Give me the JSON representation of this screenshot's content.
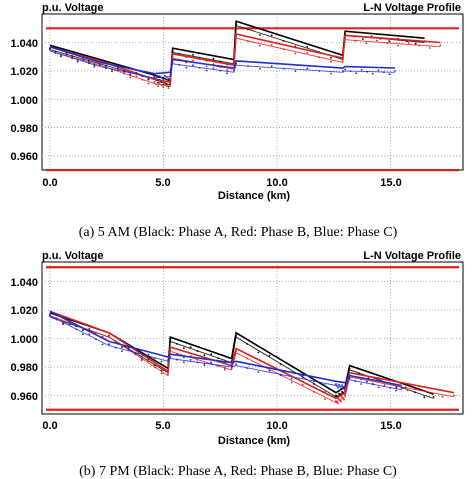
{
  "charts": [
    {
      "header_left": "p.u. Voltage",
      "header_right": "L-N Voltage Profile",
      "xlabel": "Distance (km)",
      "caption": "(a) 5 AM (Black: Phase A, Red: Phase B, Blue: Phase C)",
      "yticks": [
        "1.040",
        "1.020",
        "1.000",
        "0.980",
        "0.960"
      ],
      "xticks": [
        "0.0",
        "5.0",
        "10.0",
        "15.0"
      ]
    },
    {
      "header_left": "p.u. Voltage",
      "header_right": "L-N Voltage Profile",
      "xlabel": "Distance (km)",
      "caption": "(b) 7 PM (Black: Phase A, Red: Phase B, Blue: Phase C)",
      "yticks": [
        "1.040",
        "1.020",
        "1.000",
        "0.980",
        "0.960"
      ],
      "xticks": [
        "0.0",
        "5.0",
        "10.0",
        "15.0"
      ]
    }
  ],
  "colors": {
    "phase_a": "#000000",
    "phase_b": "#e0201a",
    "phase_c": "#1f2fd0",
    "limit": "#e0201a",
    "grid": "#9a9a9a"
  },
  "chart_data": [
    {
      "type": "line",
      "title": "L-N Voltage Profile",
      "xlabel": "Distance (km)",
      "ylabel": "p.u. Voltage",
      "xlim": [
        0,
        18.5
      ],
      "ylim": [
        0.948,
        1.053
      ],
      "grid": true,
      "limits": [
        1.05,
        0.95
      ],
      "series": [
        {
          "name": "Phase A",
          "points": [
            [
              0,
              1.038
            ],
            [
              2.2,
              1.028
            ],
            [
              4.6,
              1.017
            ],
            [
              5.3,
              1.013
            ],
            [
              5.4,
              1.036
            ],
            [
              8.1,
              1.028
            ],
            [
              8.2,
              1.055
            ],
            [
              12.9,
              1.031
            ],
            [
              13.0,
              1.048
            ],
            [
              16.5,
              1.043
            ]
          ]
        },
        {
          "name": "Phase B",
          "points": [
            [
              0,
              1.037
            ],
            [
              2.2,
              1.027
            ],
            [
              4.6,
              1.014
            ],
            [
              5.3,
              1.012
            ],
            [
              5.4,
              1.032
            ],
            [
              8.1,
              1.024
            ],
            [
              8.2,
              1.046
            ],
            [
              12.9,
              1.029
            ],
            [
              13.0,
              1.045
            ],
            [
              17.2,
              1.04
            ]
          ]
        },
        {
          "name": "Phase C",
          "points": [
            [
              0,
              1.037
            ],
            [
              2.2,
              1.026
            ],
            [
              4.6,
              1.018
            ],
            [
              5.3,
              1.019
            ],
            [
              5.4,
              1.028
            ],
            [
              8.1,
              1.022
            ],
            [
              8.2,
              1.027
            ],
            [
              12.9,
              1.022
            ],
            [
              13.0,
              1.023
            ],
            [
              15.2,
              1.022
            ]
          ]
        }
      ]
    },
    {
      "type": "line",
      "title": "L-N Voltage Profile",
      "xlabel": "Distance (km)",
      "ylabel": "p.u. Voltage",
      "xlim": [
        0,
        18.5
      ],
      "ylim": [
        0.951,
        1.052
      ],
      "grid": true,
      "limits": [
        1.05,
        0.95
      ],
      "series": [
        {
          "name": "Phase A",
          "points": [
            [
              0,
              1.018
            ],
            [
              2.6,
              1.004
            ],
            [
              5.2,
              0.979
            ],
            [
              5.3,
              1.001
            ],
            [
              8.0,
              0.986
            ],
            [
              8.2,
              1.004
            ],
            [
              12.6,
              0.962
            ],
            [
              13.0,
              0.966
            ],
            [
              13.2,
              0.981
            ],
            [
              16.9,
              0.961
            ]
          ]
        },
        {
          "name": "Phase B",
          "points": [
            [
              0,
              1.019
            ],
            [
              2.6,
              1.004
            ],
            [
              5.2,
              0.977
            ],
            [
              5.3,
              0.994
            ],
            [
              8.0,
              0.981
            ],
            [
              8.2,
              0.993
            ],
            [
              12.6,
              0.958
            ],
            [
              13.0,
              0.962
            ],
            [
              13.2,
              0.976
            ],
            [
              17.8,
              0.962
            ]
          ]
        },
        {
          "name": "Phase C",
          "points": [
            [
              0,
              1.019
            ],
            [
              2.6,
              0.998
            ],
            [
              5.2,
              0.987
            ],
            [
              5.3,
              0.989
            ],
            [
              8.0,
              0.983
            ],
            [
              8.2,
              0.984
            ],
            [
              12.6,
              0.97
            ],
            [
              13.0,
              0.969
            ],
            [
              13.2,
              0.974
            ],
            [
              15.5,
              0.967
            ]
          ]
        }
      ]
    }
  ]
}
